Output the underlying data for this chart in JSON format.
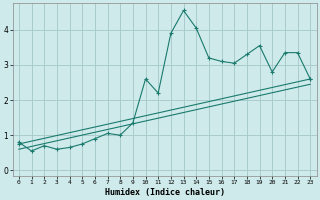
{
  "title": "",
  "xlabel": "Humidex (Indice chaleur)",
  "ylabel": "",
  "bg_color": "#ceeaea",
  "grid_color": "#aacccc",
  "line_color": "#1a7a6e",
  "xlim": [
    -0.5,
    23.5
  ],
  "ylim": [
    -0.15,
    4.75
  ],
  "xticks": [
    0,
    1,
    2,
    3,
    4,
    5,
    6,
    7,
    8,
    9,
    10,
    11,
    12,
    13,
    14,
    15,
    16,
    17,
    18,
    19,
    20,
    21,
    22,
    23
  ],
  "yticks": [
    0,
    1,
    2,
    3,
    4
  ],
  "series1_x": [
    0,
    1,
    2,
    3,
    4,
    5,
    6,
    7,
    8,
    9,
    10,
    11,
    12,
    13,
    14,
    15,
    16,
    17,
    18,
    19,
    20,
    21,
    22,
    23
  ],
  "series1_y": [
    0.8,
    0.55,
    0.7,
    0.6,
    0.65,
    0.75,
    0.9,
    1.05,
    1.0,
    1.35,
    2.6,
    2.2,
    3.9,
    4.55,
    4.05,
    3.2,
    3.1,
    3.05,
    3.3,
    3.55,
    2.8,
    3.35,
    3.35,
    2.6
  ],
  "series2_x": [
    0,
    23
  ],
  "series2_y": [
    0.75,
    2.6
  ],
  "series3_x": [
    0,
    23
  ],
  "series3_y": [
    0.6,
    2.45
  ]
}
